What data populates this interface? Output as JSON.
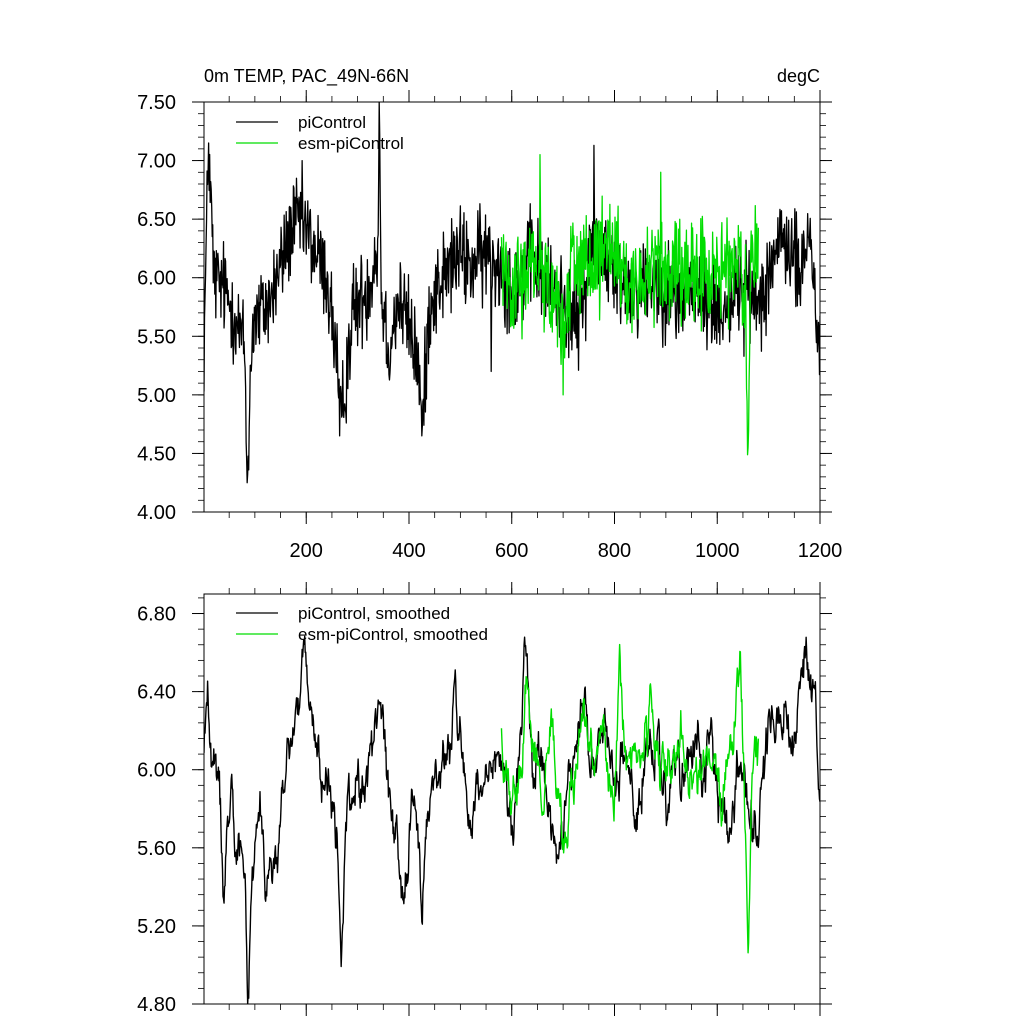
{
  "chart_data": [
    {
      "type": "line",
      "title_left": "0m TEMP, PAC_49N-66N",
      "title_right": "degC",
      "xlim": [
        1,
        1200
      ],
      "ylim": [
        4.0,
        7.5
      ],
      "x_ticks": [
        200,
        400,
        600,
        800,
        1000,
        1200
      ],
      "x_tick_labels": [
        "200",
        "400",
        "600",
        "800",
        "1000",
        "1200"
      ],
      "y_ticks": [
        4.0,
        4.5,
        5.0,
        5.5,
        6.0,
        6.5,
        7.0,
        7.5
      ],
      "y_tick_labels": [
        "4.00",
        "4.50",
        "5.00",
        "5.50",
        "6.00",
        "6.50",
        "7.00",
        "7.50"
      ],
      "grid": false,
      "legend_position": "top-left",
      "series": [
        {
          "name": "piControl",
          "color": "#000000",
          "x_start": 1,
          "x_end": 1200,
          "anchors": [
            [
              1,
              5.4
            ],
            [
              10,
              7.15
            ],
            [
              20,
              6.0
            ],
            [
              40,
              5.9
            ],
            [
              60,
              5.7
            ],
            [
              80,
              5.4
            ],
            [
              85,
              4.25
            ],
            [
              95,
              5.6
            ],
            [
              130,
              5.8
            ],
            [
              170,
              6.4
            ],
            [
              190,
              6.5
            ],
            [
              210,
              6.3
            ],
            [
              240,
              6.0
            ],
            [
              260,
              5.3
            ],
            [
              265,
              4.65
            ],
            [
              290,
              5.7
            ],
            [
              320,
              5.9
            ],
            [
              340,
              6.3
            ],
            [
              342,
              7.5
            ],
            [
              346,
              5.9
            ],
            [
              360,
              5.4
            ],
            [
              380,
              5.8
            ],
            [
              400,
              5.6
            ],
            [
              420,
              5.2
            ],
            [
              425,
              4.65
            ],
            [
              440,
              5.8
            ],
            [
              480,
              6.1
            ],
            [
              500,
              6.2
            ],
            [
              520,
              6.1
            ],
            [
              550,
              6.2
            ],
            [
              580,
              6.1
            ],
            [
              600,
              5.9
            ],
            [
              620,
              6.0
            ],
            [
              640,
              6.2
            ],
            [
              660,
              6.0
            ],
            [
              700,
              5.8
            ],
            [
              730,
              5.6
            ],
            [
              760,
              6.4
            ],
            [
              780,
              6.2
            ],
            [
              800,
              6.0
            ],
            [
              840,
              5.9
            ],
            [
              880,
              6.0
            ],
            [
              920,
              5.8
            ],
            [
              960,
              5.9
            ],
            [
              1000,
              5.7
            ],
            [
              1040,
              5.9
            ],
            [
              1080,
              5.8
            ],
            [
              1110,
              6.2
            ],
            [
              1140,
              6.3
            ],
            [
              1160,
              6.0
            ],
            [
              1180,
              6.4
            ],
            [
              1195,
              5.6
            ],
            [
              1200,
              5.3
            ]
          ],
          "noise_amplitude": 0.55,
          "spikes": [
            [
              10,
              7.15
            ],
            [
              85,
              4.25
            ],
            [
              265,
              4.65
            ],
            [
              342,
              7.5
            ],
            [
              425,
              4.65
            ],
            [
              760,
              7.13
            ],
            [
              560,
              5.2
            ]
          ]
        },
        {
          "name": "esm-piControl",
          "color": "#00dd00",
          "x_start": 580,
          "x_end": 1080,
          "anchors": [
            [
              580,
              6.2
            ],
            [
              600,
              6.0
            ],
            [
              620,
              5.9
            ],
            [
              640,
              6.2
            ],
            [
              660,
              6.1
            ],
            [
              680,
              5.8
            ],
            [
              700,
              5.6
            ],
            [
              720,
              6.2
            ],
            [
              740,
              6.1
            ],
            [
              760,
              6.0
            ],
            [
              780,
              6.3
            ],
            [
              800,
              6.1
            ],
            [
              820,
              6.0
            ],
            [
              840,
              5.8
            ],
            [
              860,
              6.1
            ],
            [
              880,
              6.2
            ],
            [
              900,
              6.0
            ],
            [
              920,
              6.1
            ],
            [
              940,
              5.9
            ],
            [
              960,
              6.0
            ],
            [
              980,
              6.1
            ],
            [
              1000,
              6.0
            ],
            [
              1020,
              6.1
            ],
            [
              1040,
              6.2
            ],
            [
              1055,
              5.8
            ],
            [
              1060,
              4.55
            ],
            [
              1065,
              6.1
            ],
            [
              1080,
              6.2
            ]
          ],
          "noise_amplitude": 0.6,
          "spikes": [
            [
              655,
              7.05
            ],
            [
              700,
              5.0
            ],
            [
              890,
              6.9
            ],
            [
              1060,
              4.55
            ]
          ]
        }
      ]
    },
    {
      "type": "line",
      "xlim": [
        1,
        1200
      ],
      "ylim": [
        4.8,
        6.9
      ],
      "x_ticks": [
        200,
        400,
        600,
        800,
        1000,
        1200
      ],
      "y_ticks": [
        4.8,
        5.2,
        5.6,
        6.0,
        6.4,
        6.8
      ],
      "y_tick_labels": [
        "4.80",
        "5.20",
        "5.60",
        "6.00",
        "6.40",
        "6.80"
      ],
      "grid": false,
      "legend_position": "top-left",
      "series": [
        {
          "name": "piControl, smoothed",
          "color": "#000000",
          "x_start": 1,
          "x_end": 1200,
          "anchors": [
            [
              1,
              6.1
            ],
            [
              8,
              6.45
            ],
            [
              15,
              6.0
            ],
            [
              30,
              5.9
            ],
            [
              40,
              5.42
            ],
            [
              55,
              6.05
            ],
            [
              65,
              5.75
            ],
            [
              80,
              5.6
            ],
            [
              87,
              4.88
            ],
            [
              95,
              5.4
            ],
            [
              110,
              5.9
            ],
            [
              120,
              5.3
            ],
            [
              135,
              5.5
            ],
            [
              150,
              5.6
            ],
            [
              160,
              6.0
            ],
            [
              180,
              6.3
            ],
            [
              195,
              6.5
            ],
            [
              210,
              6.2
            ],
            [
              230,
              6.0
            ],
            [
              250,
              5.8
            ],
            [
              262,
              5.5
            ],
            [
              268,
              5.02
            ],
            [
              280,
              5.8
            ],
            [
              300,
              5.9
            ],
            [
              320,
              6.0
            ],
            [
              340,
              6.3
            ],
            [
              345,
              6.4
            ],
            [
              360,
              5.9
            ],
            [
              380,
              5.6
            ],
            [
              390,
              5.3
            ],
            [
              400,
              5.8
            ],
            [
              410,
              5.9
            ],
            [
              420,
              5.5
            ],
            [
              425,
              5.18
            ],
            [
              440,
              5.9
            ],
            [
              460,
              6.0
            ],
            [
              480,
              6.1
            ],
            [
              490,
              6.4
            ],
            [
              500,
              6.2
            ],
            [
              520,
              5.7
            ],
            [
              540,
              5.8
            ],
            [
              560,
              5.9
            ],
            [
              580,
              6.0
            ],
            [
              600,
              5.8
            ],
            [
              620,
              6.2
            ],
            [
              625,
              6.72
            ],
            [
              640,
              6.0
            ],
            [
              660,
              6.1
            ],
            [
              680,
              5.7
            ],
            [
              700,
              5.6
            ],
            [
              720,
              6.1
            ],
            [
              740,
              6.3
            ],
            [
              760,
              6.0
            ],
            [
              780,
              6.2
            ],
            [
              800,
              5.9
            ],
            [
              820,
              6.1
            ],
            [
              840,
              5.8
            ],
            [
              860,
              6.0
            ],
            [
              880,
              6.1
            ],
            [
              900,
              5.8
            ],
            [
              920,
              6.0
            ],
            [
              940,
              5.9
            ],
            [
              960,
              6.1
            ],
            [
              980,
              6.0
            ],
            [
              1000,
              5.9
            ],
            [
              1020,
              5.8
            ],
            [
              1040,
              6.0
            ],
            [
              1060,
              5.9
            ],
            [
              1080,
              5.8
            ],
            [
              1100,
              6.2
            ],
            [
              1120,
              6.4
            ],
            [
              1140,
              6.1
            ],
            [
              1160,
              6.3
            ],
            [
              1175,
              6.6
            ],
            [
              1190,
              6.3
            ],
            [
              1200,
              5.72
            ]
          ],
          "noise_amplitude": 0.22
        },
        {
          "name": "esm-piControl, smoothed",
          "color": "#00dd00",
          "x_start": 580,
          "x_end": 1080,
          "anchors": [
            [
              580,
              6.2
            ],
            [
              600,
              5.9
            ],
            [
              620,
              6.0
            ],
            [
              630,
              6.48
            ],
            [
              640,
              6.1
            ],
            [
              660,
              5.9
            ],
            [
              680,
              6.2
            ],
            [
              700,
              5.7
            ],
            [
              720,
              6.0
            ],
            [
              740,
              6.3
            ],
            [
              760,
              6.0
            ],
            [
              780,
              6.2
            ],
            [
              800,
              5.8
            ],
            [
              810,
              6.55
            ],
            [
              830,
              6.1
            ],
            [
              850,
              6.0
            ],
            [
              870,
              6.3
            ],
            [
              890,
              5.9
            ],
            [
              910,
              6.0
            ],
            [
              930,
              6.1
            ],
            [
              950,
              5.9
            ],
            [
              970,
              6.0
            ],
            [
              990,
              6.1
            ],
            [
              1010,
              5.9
            ],
            [
              1030,
              6.2
            ],
            [
              1045,
              6.45
            ],
            [
              1055,
              5.7
            ],
            [
              1060,
              5.24
            ],
            [
              1068,
              5.9
            ],
            [
              1080,
              6.1
            ]
          ],
          "noise_amplitude": 0.22
        }
      ]
    }
  ]
}
